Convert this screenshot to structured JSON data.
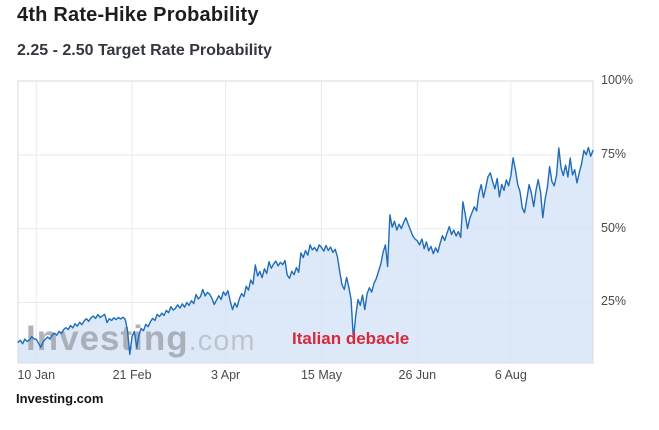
{
  "chart_data": {
    "type": "area",
    "title": "4th Rate-Hike Probability",
    "subtitle": "2.25 - 2.50 Target Rate Probability",
    "source": "Investing.com",
    "watermark": {
      "bold": "Investing",
      "light": ".com"
    },
    "annotation": {
      "text": "Italian debacle",
      "color": "#d62939"
    },
    "line_color": "#1f6db8",
    "fill_color": "rgba(213,228,248,0.8)",
    "grid_color": "#e9eaf0",
    "border_color": "#d8dae4",
    "x_axis": {
      "unit": "day-offset from chart start (early Jan) to chart end (mid Sep)",
      "domain": [
        0,
        252
      ],
      "ticks": [
        {
          "label": "10 Jan",
          "day": 8
        },
        {
          "label": "21 Feb",
          "day": 50
        },
        {
          "label": "3 Apr",
          "day": 91
        },
        {
          "label": "15 May",
          "day": 133
        },
        {
          "label": "26 Jun",
          "day": 175
        },
        {
          "label": "6 Aug",
          "day": 216
        }
      ]
    },
    "y_axis": {
      "side": "right",
      "range": [
        4.5,
        100
      ],
      "ticks": [
        {
          "label": "100%",
          "value": 100
        },
        {
          "label": "75%",
          "value": 75
        },
        {
          "label": "50%",
          "value": 50
        },
        {
          "label": "25%",
          "value": 25
        }
      ]
    },
    "points": [
      [
        0,
        11.5
      ],
      [
        1,
        12.2
      ],
      [
        2,
        11.0
      ],
      [
        3,
        12.6
      ],
      [
        4,
        11.8
      ],
      [
        5,
        12.3
      ],
      [
        6,
        13.4
      ],
      [
        7,
        12.7
      ],
      [
        8,
        12.5
      ],
      [
        9,
        11.2
      ],
      [
        10,
        9.8
      ],
      [
        11,
        11.6
      ],
      [
        12,
        12.6
      ],
      [
        13,
        13.3
      ],
      [
        14,
        12.6
      ],
      [
        15,
        13.9
      ],
      [
        16,
        14.6
      ],
      [
        17,
        13.9
      ],
      [
        18,
        15.2
      ],
      [
        19,
        14.5
      ],
      [
        20,
        15.8
      ],
      [
        21,
        16.5
      ],
      [
        22,
        15.8
      ],
      [
        23,
        17.2
      ],
      [
        24,
        16.4
      ],
      [
        25,
        17.8
      ],
      [
        26,
        17.0
      ],
      [
        27,
        18.3
      ],
      [
        28,
        17.5
      ],
      [
        29,
        18.8
      ],
      [
        30,
        19.5
      ],
      [
        31,
        18.6
      ],
      [
        32,
        19.8
      ],
      [
        33,
        20.4
      ],
      [
        34,
        19.6
      ],
      [
        35,
        20.9
      ],
      [
        36,
        19.9
      ],
      [
        37,
        20.5
      ],
      [
        38,
        21.0
      ],
      [
        39,
        18.2
      ],
      [
        40,
        19.5
      ],
      [
        41,
        18.9
      ],
      [
        42,
        19.8
      ],
      [
        43,
        19.2
      ],
      [
        44,
        19.9
      ],
      [
        45,
        19.4
      ],
      [
        46,
        20.0
      ],
      [
        47,
        19.3
      ],
      [
        48,
        15.5
      ],
      [
        49,
        7.4
      ],
      [
        50,
        13.5
      ],
      [
        51,
        15.2
      ],
      [
        52,
        9.5
      ],
      [
        53,
        14.0
      ],
      [
        54,
        16.2
      ],
      [
        55,
        15.4
      ],
      [
        56,
        17.6
      ],
      [
        57,
        16.8
      ],
      [
        58,
        18.4
      ],
      [
        59,
        19.6
      ],
      [
        60,
        18.9
      ],
      [
        61,
        21.0
      ],
      [
        62,
        20.2
      ],
      [
        63,
        21.4
      ],
      [
        64,
        20.6
      ],
      [
        65,
        22.3
      ],
      [
        66,
        21.5
      ],
      [
        67,
        23.6
      ],
      [
        68,
        22.4
      ],
      [
        69,
        23.0
      ],
      [
        70,
        24.2
      ],
      [
        71,
        23.1
      ],
      [
        72,
        24.5
      ],
      [
        73,
        23.4
      ],
      [
        74,
        25.0
      ],
      [
        75,
        24.0
      ],
      [
        76,
        25.6
      ],
      [
        77,
        24.6
      ],
      [
        78,
        27.7
      ],
      [
        79,
        26.2
      ],
      [
        80,
        27.0
      ],
      [
        81,
        29.4
      ],
      [
        82,
        27.2
      ],
      [
        83,
        28.4
      ],
      [
        84,
        27.8
      ],
      [
        85,
        26.4
      ],
      [
        86,
        24.3
      ],
      [
        87,
        25.8
      ],
      [
        88,
        27.3
      ],
      [
        89,
        26.0
      ],
      [
        90,
        28.6
      ],
      [
        91,
        27.4
      ],
      [
        92,
        29.0
      ],
      [
        93,
        25.5
      ],
      [
        94,
        22.6
      ],
      [
        95,
        24.8
      ],
      [
        96,
        23.4
      ],
      [
        97,
        26.2
      ],
      [
        98,
        28.0
      ],
      [
        99,
        27.0
      ],
      [
        100,
        30.5
      ],
      [
        101,
        29.2
      ],
      [
        102,
        32.6
      ],
      [
        103,
        31.2
      ],
      [
        104,
        37.7
      ],
      [
        105,
        34.0
      ],
      [
        106,
        35.5
      ],
      [
        107,
        33.4
      ],
      [
        108,
        36.4
      ],
      [
        109,
        34.8
      ],
      [
        110,
        38.8
      ],
      [
        111,
        36.6
      ],
      [
        112,
        38.0
      ],
      [
        113,
        39.0
      ],
      [
        114,
        37.4
      ],
      [
        115,
        38.6
      ],
      [
        116,
        37.8
      ],
      [
        117,
        39.2
      ],
      [
        118,
        34.3
      ],
      [
        119,
        33.2
      ],
      [
        120,
        35.6
      ],
      [
        121,
        34.4
      ],
      [
        122,
        36.8
      ],
      [
        123,
        35.2
      ],
      [
        124,
        41.8
      ],
      [
        125,
        40.2
      ],
      [
        126,
        42.6
      ],
      [
        127,
        41.0
      ],
      [
        128,
        44.5
      ],
      [
        129,
        42.8
      ],
      [
        130,
        43.6
      ],
      [
        131,
        42.4
      ],
      [
        132,
        44.5
      ],
      [
        133,
        43.6
      ],
      [
        134,
        42.4
      ],
      [
        135,
        44.3
      ],
      [
        136,
        42.6
      ],
      [
        137,
        43.8
      ],
      [
        138,
        42.0
      ],
      [
        139,
        43.0
      ],
      [
        140,
        40.5
      ],
      [
        141,
        35.5
      ],
      [
        142,
        31.0
      ],
      [
        143,
        29.4
      ],
      [
        144,
        33.5
      ],
      [
        145,
        30.0
      ],
      [
        146,
        26.0
      ],
      [
        147,
        12.5
      ],
      [
        148,
        20.5
      ],
      [
        149,
        26.0
      ],
      [
        150,
        24.0
      ],
      [
        151,
        27.5
      ],
      [
        152,
        22.6
      ],
      [
        153,
        28.0
      ],
      [
        154,
        30.0
      ],
      [
        155,
        28.5
      ],
      [
        156,
        31.5
      ],
      [
        157,
        33.0
      ],
      [
        158,
        35.5
      ],
      [
        159,
        38.0
      ],
      [
        160,
        42.0
      ],
      [
        161,
        44.5
      ],
      [
        162,
        37.2
      ],
      [
        163,
        54.7
      ],
      [
        164,
        50.5
      ],
      [
        165,
        52.5
      ],
      [
        166,
        49.5
      ],
      [
        167,
        51.5
      ],
      [
        168,
        50.0
      ],
      [
        169,
        52.0
      ],
      [
        170,
        53.7
      ],
      [
        171,
        51.5
      ],
      [
        172,
        49.5
      ],
      [
        173,
        47.6
      ],
      [
        174,
        46.5
      ],
      [
        175,
        45.9
      ],
      [
        176,
        44.5
      ],
      [
        177,
        46.5
      ],
      [
        178,
        43.2
      ],
      [
        179,
        45.5
      ],
      [
        180,
        42.5
      ],
      [
        181,
        44.0
      ],
      [
        182,
        41.5
      ],
      [
        183,
        43.5
      ],
      [
        184,
        42.0
      ],
      [
        185,
        45.0
      ],
      [
        186,
        47.6
      ],
      [
        187,
        46.0
      ],
      [
        188,
        48.5
      ],
      [
        189,
        50.7
      ],
      [
        190,
        48.0
      ],
      [
        191,
        49.5
      ],
      [
        192,
        47.5
      ],
      [
        193,
        49.0
      ],
      [
        194,
        47.0
      ],
      [
        195,
        59.1
      ],
      [
        196,
        55.0
      ],
      [
        197,
        50.0
      ],
      [
        198,
        53.5
      ],
      [
        199,
        55.5
      ],
      [
        200,
        57.4
      ],
      [
        201,
        56.0
      ],
      [
        202,
        62.0
      ],
      [
        203,
        64.9
      ],
      [
        204,
        60.5
      ],
      [
        205,
        64.0
      ],
      [
        206,
        67.6
      ],
      [
        207,
        68.9
      ],
      [
        208,
        66.0
      ],
      [
        209,
        63.5
      ],
      [
        210,
        67.0
      ],
      [
        211,
        60.8
      ],
      [
        212,
        65.0
      ],
      [
        213,
        63.0
      ],
      [
        214,
        66.5
      ],
      [
        215,
        64.5
      ],
      [
        216,
        68.0
      ],
      [
        217,
        74.0
      ],
      [
        218,
        70.0
      ],
      [
        219,
        65.0
      ],
      [
        220,
        62.5
      ],
      [
        221,
        57.0
      ],
      [
        222,
        55.4
      ],
      [
        223,
        60.0
      ],
      [
        224,
        64.9
      ],
      [
        225,
        62.0
      ],
      [
        226,
        57.5
      ],
      [
        227,
        63.0
      ],
      [
        228,
        66.6
      ],
      [
        229,
        62.5
      ],
      [
        230,
        53.7
      ],
      [
        231,
        60.0
      ],
      [
        232,
        64.0
      ],
      [
        233,
        71.0
      ],
      [
        234,
        66.0
      ],
      [
        235,
        64.5
      ],
      [
        236,
        68.0
      ],
      [
        237,
        77.3
      ],
      [
        238,
        70.5
      ],
      [
        239,
        68.0
      ],
      [
        240,
        71.5
      ],
      [
        241,
        67.5
      ],
      [
        242,
        73.9
      ],
      [
        243,
        68.2
      ],
      [
        244,
        70.0
      ],
      [
        245,
        65.5
      ],
      [
        246,
        69.0
      ],
      [
        247,
        72.0
      ],
      [
        248,
        76.5
      ],
      [
        249,
        75.0
      ],
      [
        250,
        77.5
      ],
      [
        251,
        74.5
      ],
      [
        252,
        76.5
      ]
    ]
  }
}
